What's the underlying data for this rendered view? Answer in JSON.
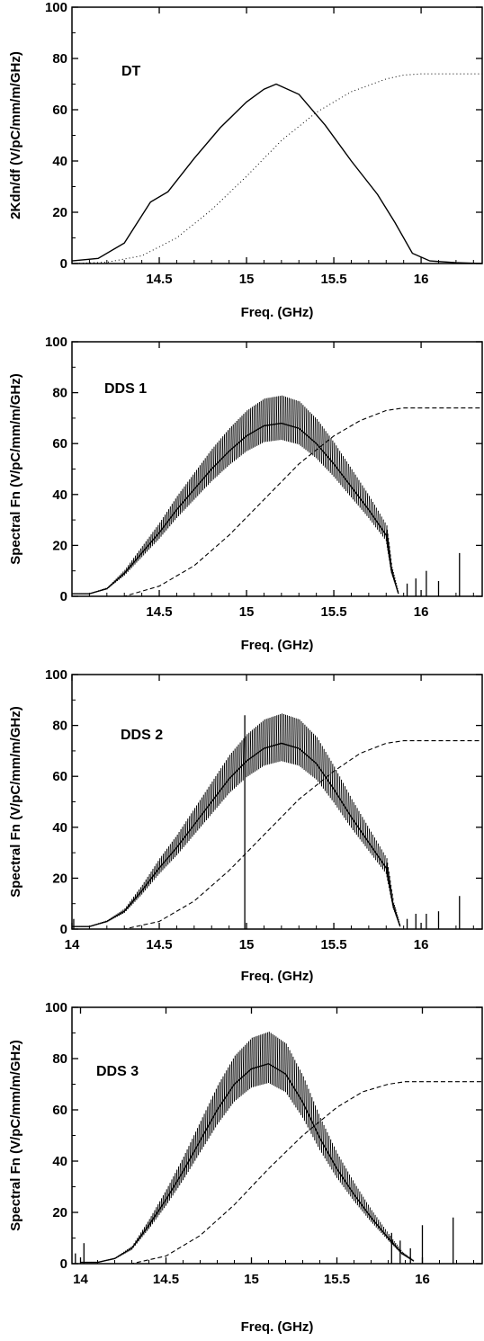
{
  "chart_data": [
    {
      "type": "line",
      "label": "DT",
      "xlabel": "Freq. (GHz)",
      "ylabel": "2Kdn/df (V/pC/mm/m/GHz)",
      "xlim": [
        14.0,
        16.35
      ],
      "ylim": [
        0,
        100
      ],
      "xticks": [
        "14.5",
        "15",
        "15.5",
        "16"
      ],
      "yticks": [
        "0",
        "20",
        "40",
        "60",
        "80",
        "100"
      ],
      "series": [
        {
          "style": "solid",
          "x": [
            14.0,
            14.15,
            14.3,
            14.45,
            14.55,
            14.7,
            14.85,
            15.0,
            15.1,
            15.17,
            15.3,
            15.45,
            15.6,
            15.75,
            15.85,
            15.95,
            16.05,
            16.2,
            16.35
          ],
          "y": [
            1,
            2,
            8,
            24,
            28,
            41,
            53,
            63,
            68,
            70,
            66,
            54,
            40,
            27,
            16,
            4,
            1,
            0.3,
            0
          ]
        },
        {
          "style": "dotted",
          "x": [
            14.0,
            14.2,
            14.4,
            14.6,
            14.8,
            15.0,
            15.2,
            15.4,
            15.6,
            15.8,
            15.9,
            16.0,
            16.35
          ],
          "y": [
            0,
            0.5,
            3,
            10,
            21,
            34,
            48,
            59,
            67,
            72,
            73.5,
            74,
            74
          ]
        }
      ]
    },
    {
      "type": "line",
      "label": "DDS 1",
      "xlabel": "Freq. (GHz)",
      "ylabel": "Spectral Fn (V/pC/mm/m/GHz)",
      "xlim": [
        14.0,
        16.35
      ],
      "ylim": [
        0,
        100
      ],
      "xticks": [
        "14.5",
        "15",
        "15.5",
        "16"
      ],
      "yticks": [
        "0",
        "20",
        "40",
        "60",
        "80",
        "100"
      ],
      "series": [
        {
          "style": "solid",
          "x": [
            14.0,
            14.1,
            14.2,
            14.3,
            14.4,
            14.5,
            14.6,
            14.7,
            14.8,
            14.9,
            15.0,
            15.1,
            15.2,
            15.3,
            15.4,
            15.5,
            15.6,
            15.7,
            15.8,
            15.83,
            15.87
          ],
          "y": [
            1,
            1,
            3,
            9,
            17,
            25,
            34,
            42,
            50,
            57,
            63,
            67,
            68,
            66,
            60,
            52,
            43,
            34,
            24,
            10,
            1
          ],
          "spikes": [
            {
              "x": 15.92,
              "y": 5
            },
            {
              "x": 15.97,
              "y": 7
            },
            {
              "x": 16.03,
              "y": 10
            },
            {
              "x": 16.1,
              "y": 6
            },
            {
              "x": 16.22,
              "y": 17
            }
          ]
        },
        {
          "style": "dashed",
          "x": [
            14.0,
            14.3,
            14.5,
            14.7,
            14.9,
            15.1,
            15.3,
            15.5,
            15.65,
            15.8,
            15.9,
            16.0,
            16.35
          ],
          "y": [
            0,
            0,
            4,
            12,
            24,
            38,
            52,
            63,
            69,
            73,
            74,
            74,
            74
          ]
        }
      ]
    },
    {
      "type": "line",
      "label": "DDS 2",
      "xlabel": "Freq. (GHz)",
      "ylabel": "Spectral Fn (V/pC/mm/m/GHz)",
      "xlim": [
        14.0,
        16.35
      ],
      "ylim": [
        0,
        100
      ],
      "xticks": [
        "14",
        "14.5",
        "15",
        "15.5",
        "16"
      ],
      "yticks": [
        "0",
        "20",
        "40",
        "60",
        "80",
        "100"
      ],
      "series": [
        {
          "style": "solid",
          "x": [
            14.0,
            14.1,
            14.2,
            14.3,
            14.4,
            14.5,
            14.6,
            14.7,
            14.8,
            14.9,
            15.0,
            15.1,
            15.2,
            15.3,
            15.4,
            15.5,
            15.6,
            15.7,
            15.8,
            15.84,
            15.88
          ],
          "y": [
            1,
            1,
            3,
            7,
            15,
            24,
            32,
            41,
            50,
            59,
            66,
            71,
            73,
            71,
            65,
            55,
            44,
            34,
            24,
            9,
            1
          ],
          "spikes": [
            {
              "x": 14.01,
              "y": 4
            },
            {
              "x": 14.99,
              "y": 84
            },
            {
              "x": 15.92,
              "y": 4
            },
            {
              "x": 15.97,
              "y": 6
            },
            {
              "x": 16.03,
              "y": 6
            },
            {
              "x": 16.1,
              "y": 7
            },
            {
              "x": 16.22,
              "y": 13
            }
          ]
        },
        {
          "style": "dashed",
          "x": [
            14.0,
            14.3,
            14.5,
            14.7,
            14.9,
            15.1,
            15.3,
            15.5,
            15.65,
            15.8,
            15.9,
            16.0,
            16.35
          ],
          "y": [
            0,
            0,
            3,
            11,
            23,
            37,
            51,
            62,
            69,
            73,
            74,
            74,
            74
          ]
        }
      ]
    },
    {
      "type": "line",
      "label": "DDS 3",
      "xlabel": "Freq. (GHz)",
      "ylabel": "Spectral Fn (V/pC/mm/m/GHz)",
      "xlim": [
        13.95,
        16.35
      ],
      "ylim": [
        0,
        100
      ],
      "xticks": [
        "14",
        "14.5",
        "15",
        "15.5",
        "16"
      ],
      "yticks": [
        "0",
        "20",
        "40",
        "60",
        "80",
        "100"
      ],
      "series": [
        {
          "style": "solid",
          "x": [
            14.0,
            14.1,
            14.2,
            14.3,
            14.4,
            14.5,
            14.6,
            14.7,
            14.8,
            14.9,
            15.0,
            15.1,
            15.2,
            15.3,
            15.4,
            15.5,
            15.6,
            15.7,
            15.8,
            15.88,
            15.95
          ],
          "y": [
            0.5,
            0.5,
            2,
            6,
            15,
            25,
            36,
            48,
            60,
            70,
            76,
            78,
            74,
            63,
            49,
            37,
            27,
            18,
            10,
            4,
            1
          ],
          "spikes": [
            {
              "x": 13.97,
              "y": 4
            },
            {
              "x": 14.02,
              "y": 8
            },
            {
              "x": 15.82,
              "y": 12
            },
            {
              "x": 15.87,
              "y": 9
            },
            {
              "x": 15.93,
              "y": 6
            },
            {
              "x": 16.0,
              "y": 15
            },
            {
              "x": 16.18,
              "y": 18
            }
          ]
        },
        {
          "style": "dashed",
          "x": [
            13.95,
            14.3,
            14.5,
            14.7,
            14.9,
            15.1,
            15.3,
            15.5,
            15.65,
            15.8,
            15.9,
            16.0,
            16.35
          ],
          "y": [
            0,
            0,
            3,
            11,
            23,
            37,
            50,
            61,
            67,
            70,
            71,
            71,
            71
          ]
        }
      ]
    }
  ]
}
